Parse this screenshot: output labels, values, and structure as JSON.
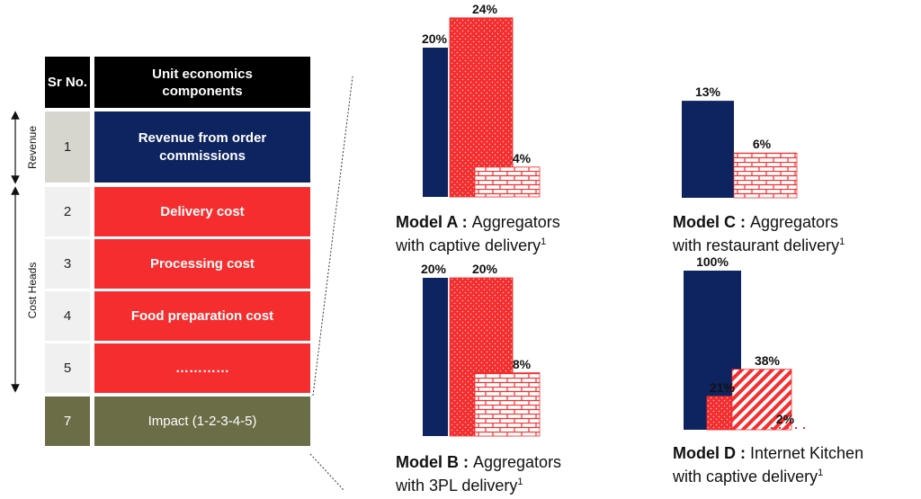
{
  "table": {
    "header": {
      "sr": "Sr No.",
      "components": "Unit economics components"
    },
    "rows": [
      {
        "sr": "1",
        "component": "Revenue from order commissions"
      },
      {
        "sr": "2",
        "component": "Delivery cost"
      },
      {
        "sr": "3",
        "component": "Processing cost"
      },
      {
        "sr": "4",
        "component": "Food preparation cost"
      },
      {
        "sr": "5",
        "component": "…………"
      },
      {
        "sr": "7",
        "component": "Impact (1-2-3-4-5)"
      }
    ],
    "side_labels": {
      "revenue": "Revenue",
      "cost_heads": "Cost  Heads"
    }
  },
  "colors": {
    "navy": "#0e2460",
    "red": "#f52d2e",
    "olive": "#6b6d47",
    "black": "#000000"
  },
  "chart_data": [
    {
      "type": "bar",
      "model": "Model A",
      "caption_line1": "Aggregators",
      "caption_line2": "with captive delivery",
      "footnote": "1",
      "bars": [
        {
          "label": "20%",
          "value": 20,
          "pattern": "navy"
        },
        {
          "label": "24%",
          "value": 24,
          "pattern": "dots"
        },
        {
          "label": "4%",
          "value": 4,
          "pattern": "brick"
        }
      ]
    },
    {
      "type": "bar",
      "model": "Model B",
      "caption_line1": "Aggregators",
      "caption_line2": "with 3PL delivery",
      "footnote": "1",
      "bars": [
        {
          "label": "20%",
          "value": 20,
          "pattern": "navy"
        },
        {
          "label": "20%",
          "value": 20,
          "pattern": "dots"
        },
        {
          "label": "8%",
          "value": 8,
          "pattern": "brick"
        }
      ]
    },
    {
      "type": "bar",
      "model": "Model C",
      "caption_line1": "Aggregators",
      "caption_line2": "with restaurant delivery",
      "footnote": "1",
      "bars": [
        {
          "label": "13%",
          "value": 13,
          "pattern": "navy"
        },
        {
          "label": "6%",
          "value": 6,
          "pattern": "brick"
        }
      ]
    },
    {
      "type": "bar",
      "model": "Model D",
      "caption_line1": "Internet Kitchen",
      "caption_line2": "with captive delivery",
      "footnote": "1",
      "bars": [
        {
          "label": "100%",
          "value": 100,
          "pattern": "navy"
        },
        {
          "label": "21%",
          "value": 21,
          "pattern": "dots"
        },
        {
          "label": "38%",
          "value": 38,
          "pattern": "stripes"
        },
        {
          "label": "2%",
          "value": 2,
          "pattern": "dotted-line"
        }
      ]
    }
  ]
}
